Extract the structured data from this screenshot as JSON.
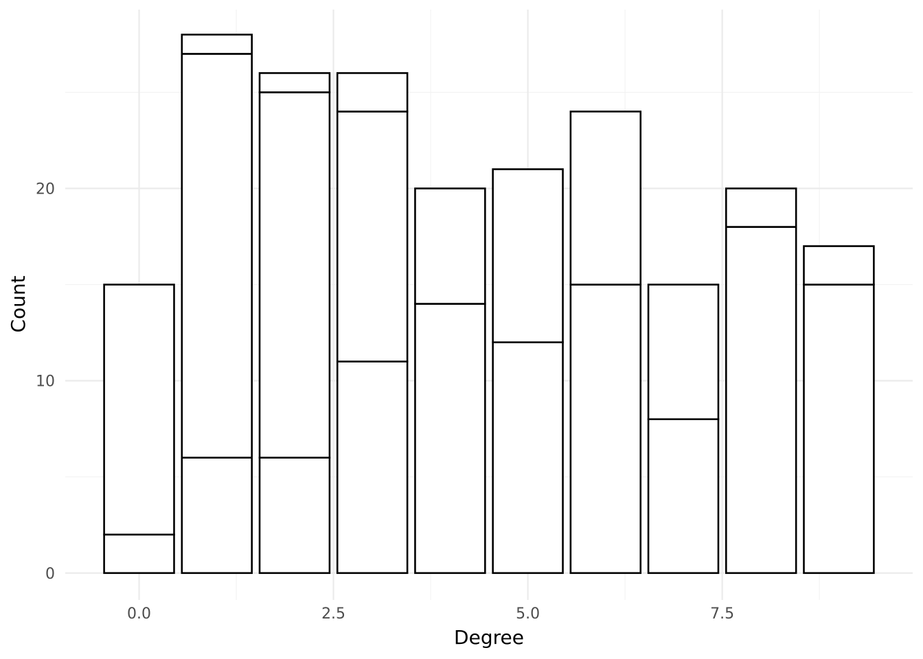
{
  "chart_data": {
    "type": "bar",
    "stacked": true,
    "xlabel": "Degree",
    "ylabel": "Count",
    "x": [
      0,
      1,
      2,
      3,
      4,
      5,
      6,
      7,
      8,
      9
    ],
    "series": [
      {
        "values": [
          2,
          6,
          6,
          11,
          14,
          12,
          15,
          8,
          18,
          15
        ]
      },
      {
        "values": [
          13,
          21,
          19,
          13,
          6,
          9,
          9,
          7,
          2,
          2
        ]
      },
      {
        "values": [
          0,
          1,
          1,
          2,
          0,
          0,
          0,
          0,
          0,
          0
        ]
      }
    ],
    "x_ticks": [
      {
        "value": 0,
        "label": "0.0"
      },
      {
        "value": 2.5,
        "label": "2.5"
      },
      {
        "value": 5,
        "label": "5.0"
      },
      {
        "value": 7.5,
        "label": "7.5"
      }
    ],
    "y_ticks": [
      {
        "value": 0,
        "label": "0"
      },
      {
        "value": 10,
        "label": "10"
      },
      {
        "value": 20,
        "label": "20"
      }
    ],
    "xlim": [
      -0.95,
      9.95
    ],
    "ylim": [
      -1.4,
      29.3
    ],
    "grid": true,
    "legend": "none",
    "colors": {
      "bar_fill": "#ffffff",
      "bar_stroke": "#000000",
      "grid": "#ebebeb"
    }
  }
}
